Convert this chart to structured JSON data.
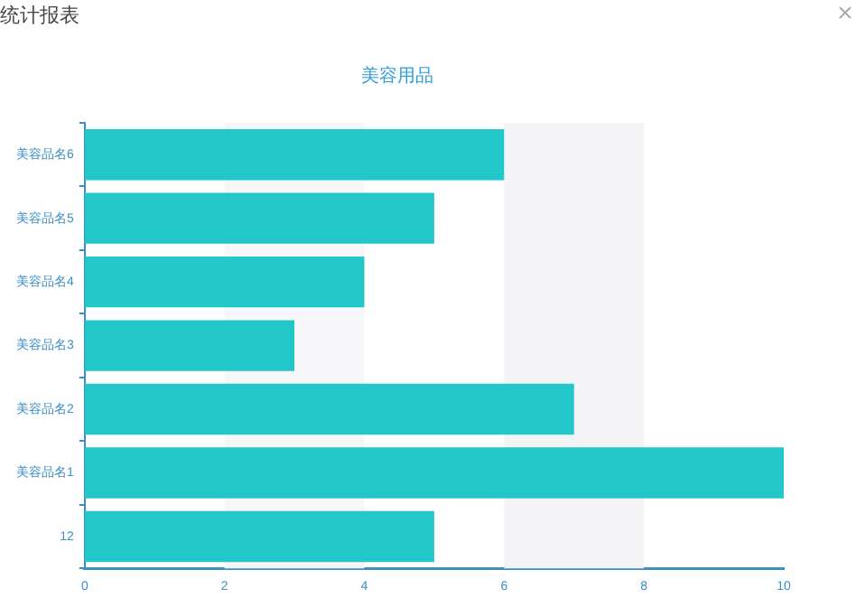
{
  "chart_data": {
    "type": "bar",
    "orientation": "horizontal",
    "title": "美容用品",
    "annotations": [
      "统计报表"
    ],
    "categories": [
      "美容品名6",
      "美容品名5",
      "美容品名4",
      "美容品名3",
      "美容品名2",
      "美容品名1",
      "12"
    ],
    "values": [
      6,
      5,
      4,
      3,
      7,
      10,
      5
    ],
    "color": "#22c7c9",
    "xlim": [
      0,
      10
    ],
    "xticks": [
      0,
      2,
      4,
      6,
      8,
      10
    ],
    "grid": false,
    "legend": false,
    "bands": [
      {
        "axis": "x",
        "from": 2,
        "to": 4,
        "color": "#f7f7f9"
      },
      {
        "axis": "x",
        "from": 6,
        "to": 8,
        "color": "#f4f4f6"
      }
    ]
  }
}
